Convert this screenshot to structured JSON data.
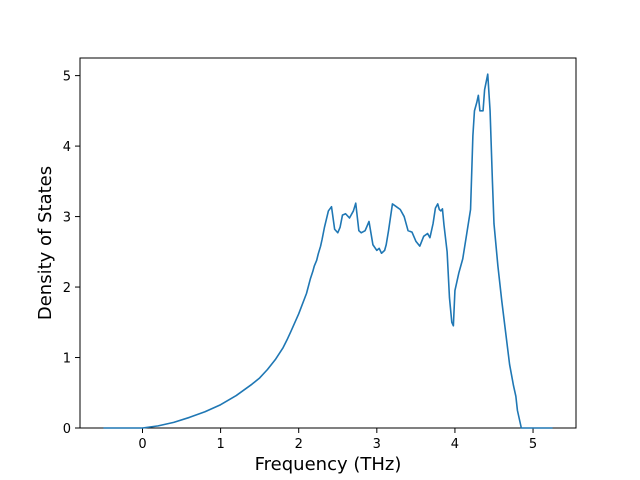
{
  "chart_data": {
    "type": "line",
    "title": "",
    "xlabel": "Frequency (THz)",
    "ylabel": "Density of States",
    "xlim": [
      -0.8,
      5.55
    ],
    "ylim": [
      0,
      5.25
    ],
    "xticks": [
      0,
      1,
      2,
      3,
      4,
      5
    ],
    "yticks": [
      0,
      1,
      2,
      3,
      4,
      5
    ],
    "grid": false,
    "series_color": "#1f77b4",
    "series": [
      {
        "x": [
          -0.5,
          0.0,
          0.2,
          0.4,
          0.6,
          0.8,
          1.0,
          1.2,
          1.4,
          1.5,
          1.6,
          1.7,
          1.8,
          1.85,
          1.9,
          2.0,
          2.1,
          2.15,
          2.18,
          2.2,
          2.23,
          2.25,
          2.28,
          2.3,
          2.33,
          2.38,
          2.42,
          2.46,
          2.5,
          2.53,
          2.56,
          2.6,
          2.65,
          2.7,
          2.73,
          2.77,
          2.8,
          2.85,
          2.9,
          2.95,
          3.0,
          3.03,
          3.06,
          3.1,
          3.12,
          3.15,
          3.2,
          3.25,
          3.3,
          3.35,
          3.4,
          3.45,
          3.5,
          3.55,
          3.6,
          3.65,
          3.68,
          3.72,
          3.75,
          3.78,
          3.8,
          3.82,
          3.84,
          3.86,
          3.9,
          3.93,
          3.96,
          3.98,
          4.0,
          4.02,
          4.05,
          4.1,
          4.15,
          4.2,
          4.23,
          4.25,
          4.28,
          4.3,
          4.32,
          4.36,
          4.38,
          4.42,
          4.45,
          4.48,
          4.5,
          4.55,
          4.6,
          4.65,
          4.7,
          4.75,
          4.78,
          4.8,
          4.85,
          5.0,
          5.25
        ],
        "y": [
          0.0,
          0.0,
          0.03,
          0.08,
          0.15,
          0.23,
          0.33,
          0.46,
          0.62,
          0.71,
          0.83,
          0.97,
          1.14,
          1.25,
          1.37,
          1.62,
          1.91,
          2.12,
          2.22,
          2.3,
          2.38,
          2.47,
          2.58,
          2.68,
          2.85,
          3.08,
          3.14,
          2.82,
          2.77,
          2.85,
          3.02,
          3.04,
          2.98,
          3.08,
          3.19,
          2.8,
          2.77,
          2.8,
          2.93,
          2.6,
          2.52,
          2.55,
          2.48,
          2.52,
          2.6,
          2.8,
          3.18,
          3.14,
          3.1,
          3.0,
          2.8,
          2.78,
          2.65,
          2.58,
          2.72,
          2.76,
          2.7,
          2.9,
          3.12,
          3.18,
          3.1,
          3.08,
          3.11,
          2.88,
          2.5,
          1.85,
          1.5,
          1.45,
          1.95,
          2.05,
          2.2,
          2.4,
          2.75,
          3.1,
          4.15,
          4.5,
          4.62,
          4.72,
          4.5,
          4.5,
          4.8,
          5.02,
          4.5,
          3.5,
          2.9,
          2.3,
          1.8,
          1.35,
          0.9,
          0.6,
          0.45,
          0.25,
          0.0,
          0.0,
          0.0
        ]
      }
    ]
  }
}
